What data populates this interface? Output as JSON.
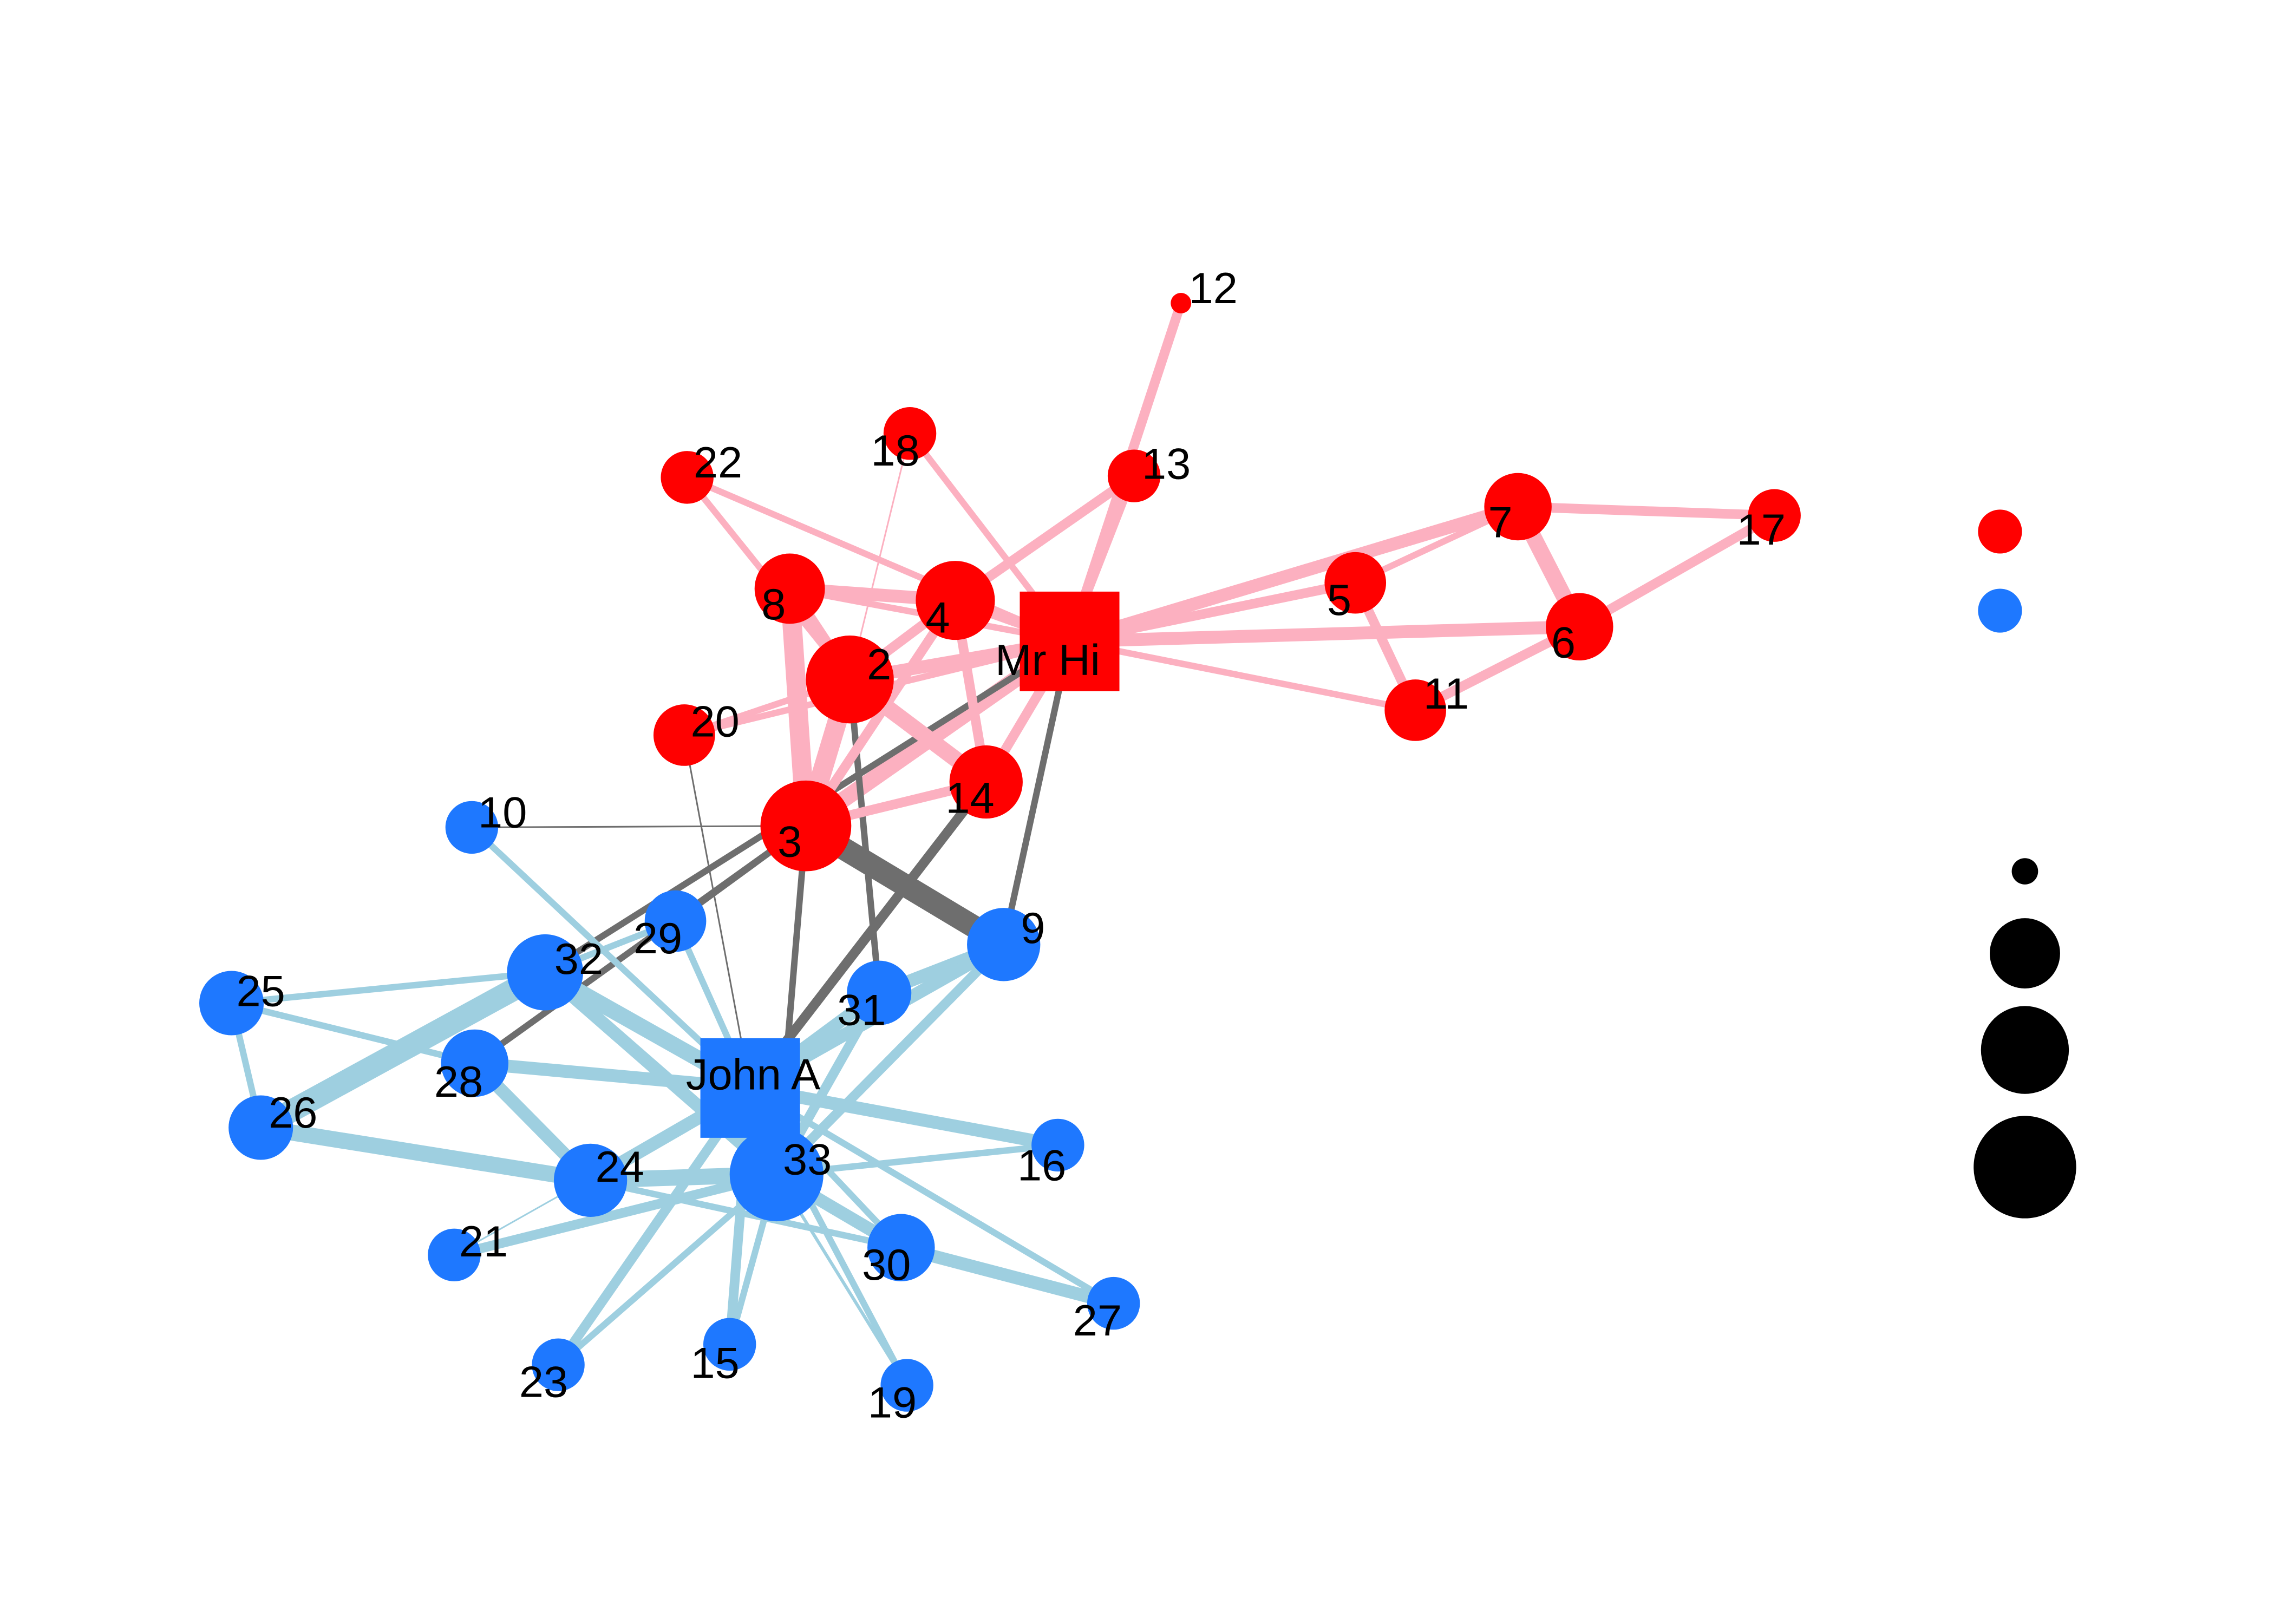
{
  "colors": {
    "group_a": "#FF0000",
    "group_b": "#1E78FF",
    "edge_within_a": "#FCB0C0",
    "edge_within_b": "#9ECFE0",
    "edge_between": "#6E6E6E",
    "legend_size": "#000000"
  },
  "nodes": [
    {
      "id": "MrHi",
      "label": "Mr Hi",
      "group": "a",
      "shape": "square"
    },
    {
      "id": "2",
      "label": "2",
      "group": "a"
    },
    {
      "id": "3",
      "label": "3",
      "group": "a"
    },
    {
      "id": "4",
      "label": "4",
      "group": "a"
    },
    {
      "id": "5",
      "label": "5",
      "group": "a"
    },
    {
      "id": "6",
      "label": "6",
      "group": "a"
    },
    {
      "id": "7",
      "label": "7",
      "group": "a"
    },
    {
      "id": "8",
      "label": "8",
      "group": "a"
    },
    {
      "id": "9",
      "label": "9",
      "group": "b"
    },
    {
      "id": "10",
      "label": "10",
      "group": "b"
    },
    {
      "id": "11",
      "label": "11",
      "group": "a"
    },
    {
      "id": "12",
      "label": "12",
      "group": "a"
    },
    {
      "id": "13",
      "label": "13",
      "group": "a"
    },
    {
      "id": "14",
      "label": "14",
      "group": "a"
    },
    {
      "id": "15",
      "label": "15",
      "group": "b"
    },
    {
      "id": "16",
      "label": "16",
      "group": "b"
    },
    {
      "id": "17",
      "label": "17",
      "group": "a"
    },
    {
      "id": "18",
      "label": "18",
      "group": "a"
    },
    {
      "id": "19",
      "label": "19",
      "group": "b"
    },
    {
      "id": "20",
      "label": "20",
      "group": "a"
    },
    {
      "id": "21",
      "label": "21",
      "group": "b"
    },
    {
      "id": "22",
      "label": "22",
      "group": "a"
    },
    {
      "id": "23",
      "label": "23",
      "group": "b"
    },
    {
      "id": "24",
      "label": "24",
      "group": "b"
    },
    {
      "id": "25",
      "label": "25",
      "group": "b"
    },
    {
      "id": "26",
      "label": "26",
      "group": "b"
    },
    {
      "id": "27",
      "label": "27",
      "group": "b"
    },
    {
      "id": "28",
      "label": "28",
      "group": "b"
    },
    {
      "id": "29",
      "label": "29",
      "group": "b"
    },
    {
      "id": "30",
      "label": "30",
      "group": "b"
    },
    {
      "id": "31",
      "label": "31",
      "group": "b"
    },
    {
      "id": "32",
      "label": "32",
      "group": "b"
    },
    {
      "id": "33",
      "label": "33",
      "group": "b"
    },
    {
      "id": "JohnA",
      "label": "John A",
      "group": "b",
      "shape": "square"
    }
  ],
  "edges": [
    [
      "MrHi",
      "2",
      4
    ],
    [
      "MrHi",
      "3",
      5
    ],
    [
      "MrHi",
      "4",
      3
    ],
    [
      "MrHi",
      "5",
      3
    ],
    [
      "MrHi",
      "6",
      4
    ],
    [
      "MrHi",
      "7",
      4
    ],
    [
      "MrHi",
      "8",
      2
    ],
    [
      "MrHi",
      "9",
      2
    ],
    [
      "MrHi",
      "11",
      2
    ],
    [
      "MrHi",
      "12",
      3
    ],
    [
      "MrHi",
      "13",
      2
    ],
    [
      "MrHi",
      "14",
      3
    ],
    [
      "MrHi",
      "18",
      2
    ],
    [
      "MrHi",
      "20",
      2
    ],
    [
      "MrHi",
      "22",
      2
    ],
    [
      "MrHi",
      "32",
      2
    ],
    [
      "2",
      "3",
      6
    ],
    [
      "2",
      "4",
      3
    ],
    [
      "2",
      "8",
      4
    ],
    [
      "2",
      "14",
      5
    ],
    [
      "2",
      "18",
      0.5
    ],
    [
      "2",
      "20",
      2
    ],
    [
      "2",
      "22",
      2
    ],
    [
      "2",
      "31",
      2
    ],
    [
      "3",
      "4",
      3
    ],
    [
      "3",
      "8",
      6
    ],
    [
      "3",
      "9",
      7
    ],
    [
      "3",
      "10",
      0.5
    ],
    [
      "3",
      "14",
      3
    ],
    [
      "3",
      "28",
      2
    ],
    [
      "3",
      "29",
      2
    ],
    [
      "3",
      "33",
      2
    ],
    [
      "4",
      "8",
      4
    ],
    [
      "4",
      "13",
      3
    ],
    [
      "4",
      "14",
      3
    ],
    [
      "5",
      "7",
      2
    ],
    [
      "5",
      "11",
      3
    ],
    [
      "6",
      "7",
      5
    ],
    [
      "6",
      "11",
      3
    ],
    [
      "6",
      "17",
      3
    ],
    [
      "7",
      "17",
      3
    ],
    [
      "9",
      "31",
      4
    ],
    [
      "9",
      "33",
      3
    ],
    [
      "9",
      "JohnA",
      4
    ],
    [
      "10",
      "JohnA",
      2
    ],
    [
      "14",
      "JohnA",
      3
    ],
    [
      "15",
      "33",
      2
    ],
    [
      "15",
      "JohnA",
      3
    ],
    [
      "16",
      "33",
      2
    ],
    [
      "16",
      "JohnA",
      4
    ],
    [
      "19",
      "33",
      1
    ],
    [
      "19",
      "JohnA",
      2
    ],
    [
      "20",
      "JohnA",
      0.5
    ],
    [
      "21",
      "33",
      3
    ],
    [
      "21",
      "JohnA",
      0.5
    ],
    [
      "23",
      "33",
      2
    ],
    [
      "23",
      "JohnA",
      3
    ],
    [
      "24",
      "26",
      5
    ],
    [
      "24",
      "28",
      4
    ],
    [
      "24",
      "30",
      2
    ],
    [
      "24",
      "33",
      5
    ],
    [
      "24",
      "JohnA",
      4
    ],
    [
      "25",
      "26",
      2
    ],
    [
      "25",
      "28",
      2
    ],
    [
      "25",
      "32",
      2
    ],
    [
      "26",
      "32",
      7
    ],
    [
      "27",
      "30",
      4
    ],
    [
      "27",
      "JohnA",
      2
    ],
    [
      "28",
      "JohnA",
      4
    ],
    [
      "29",
      "32",
      2
    ],
    [
      "29",
      "JohnA",
      2
    ],
    [
      "30",
      "33",
      4
    ],
    [
      "30",
      "JohnA",
      2
    ],
    [
      "31",
      "33",
      3
    ],
    [
      "31",
      "JohnA",
      4
    ],
    [
      "32",
      "33",
      4
    ],
    [
      "32",
      "JohnA",
      5
    ],
    [
      "33",
      "JohnA",
      5
    ]
  ],
  "legend": {
    "group_markers": [
      "a",
      "b"
    ],
    "size_markers": [
      1,
      2,
      3,
      4
    ]
  }
}
